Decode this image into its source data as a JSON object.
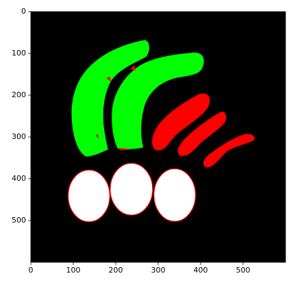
{
  "chart_data": {
    "type": "image",
    "xlim": [
      0,
      600
    ],
    "ylim": [
      600,
      0
    ],
    "xticks": [
      0,
      100,
      200,
      300,
      400,
      500
    ],
    "yticks": [
      0,
      100,
      200,
      300,
      400,
      500
    ]
  }
}
